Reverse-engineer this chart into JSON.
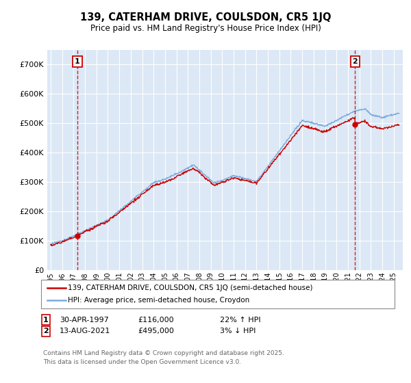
{
  "title": "139, CATERHAM DRIVE, COULSDON, CR5 1JQ",
  "subtitle": "Price paid vs. HM Land Registry's House Price Index (HPI)",
  "ylim": [
    0,
    750000
  ],
  "yticks": [
    0,
    100000,
    200000,
    300000,
    400000,
    500000,
    600000,
    700000
  ],
  "ytick_labels": [
    "£0",
    "£100K",
    "£200K",
    "£300K",
    "£400K",
    "£500K",
    "£600K",
    "£700K"
  ],
  "bg_color": "#dce8f5",
  "grid_color": "#ffffff",
  "sale1_x": 1997.33,
  "sale1_y": 116000,
  "sale1_date_str": "30-APR-1997",
  "sale1_pct": "22% ↑ HPI",
  "sale2_x": 2021.62,
  "sale2_y": 495000,
  "sale2_date_str": "13-AUG-2021",
  "sale2_pct": "3% ↓ HPI",
  "legend_line1": "139, CATERHAM DRIVE, COULSDON, CR5 1JQ (semi-detached house)",
  "legend_line2": "HPI: Average price, semi-detached house, Croydon",
  "footer": "Contains HM Land Registry data © Crown copyright and database right 2025.\nThis data is licensed under the Open Government Licence v3.0.",
  "red_color": "#cc0000",
  "blue_color": "#7aaadd",
  "box_color": "#cc0000",
  "xmin": 1995,
  "xmax": 2025
}
